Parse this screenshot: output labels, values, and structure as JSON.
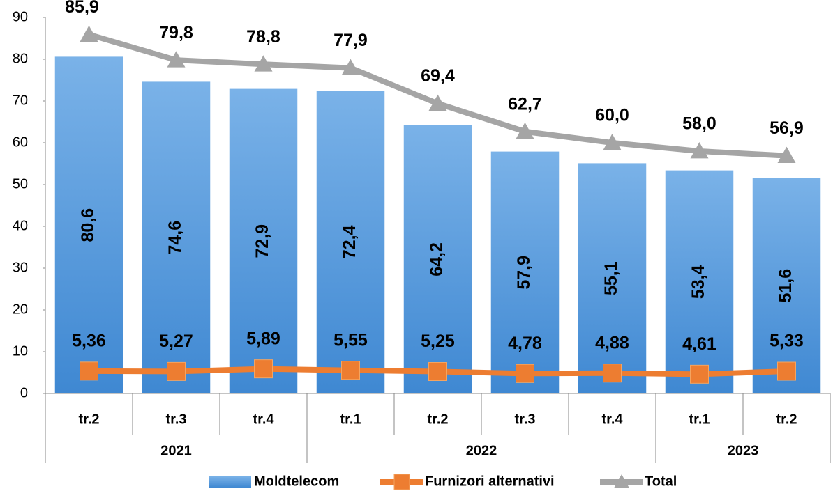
{
  "chart_data": {
    "type": "bar_line",
    "categories": [
      "tr.2",
      "tr.3",
      "tr.4",
      "tr.1",
      "tr.2",
      "tr.3",
      "tr.4",
      "tr.1",
      "tr.2"
    ],
    "groups": [
      {
        "label": "2021",
        "count": 3
      },
      {
        "label": "2022",
        "count": 4
      },
      {
        "label": "2023",
        "count": 2
      }
    ],
    "series": [
      {
        "name": "Moldtelecom",
        "type": "bar",
        "color": "#5b9bd5",
        "values": [
          80.6,
          74.6,
          72.9,
          72.4,
          64.2,
          57.9,
          55.1,
          53.4,
          51.6
        ],
        "value_labels": [
          "80,6",
          "74,6",
          "72,9",
          "72,4",
          "64,2",
          "57,9",
          "55,1",
          "53,4",
          "51,6"
        ]
      },
      {
        "name": "Furnizori alternativi",
        "type": "line",
        "marker": "square",
        "color": "#ed7d31",
        "values": [
          5.36,
          5.27,
          5.89,
          5.55,
          5.25,
          4.78,
          4.88,
          4.61,
          5.33
        ],
        "value_labels": [
          "5,36",
          "5,27",
          "5,89",
          "5,55",
          "5,25",
          "4,78",
          "4,88",
          "4,61",
          "5,33"
        ]
      },
      {
        "name": "Total",
        "type": "line",
        "marker": "triangle",
        "color": "#a5a5a5",
        "values": [
          85.9,
          79.8,
          78.8,
          77.9,
          69.4,
          62.7,
          60.0,
          58.0,
          56.9
        ],
        "value_labels": [
          "85,9",
          "79,8",
          "78,8",
          "77,9",
          "69,4",
          "62,7",
          "60,0",
          "58,0",
          "56,9"
        ]
      }
    ],
    "ylim": [
      0,
      90
    ],
    "yticks": [
      0,
      10,
      20,
      30,
      40,
      50,
      60,
      70,
      80,
      90
    ],
    "grid": false,
    "legend": "bottom"
  }
}
